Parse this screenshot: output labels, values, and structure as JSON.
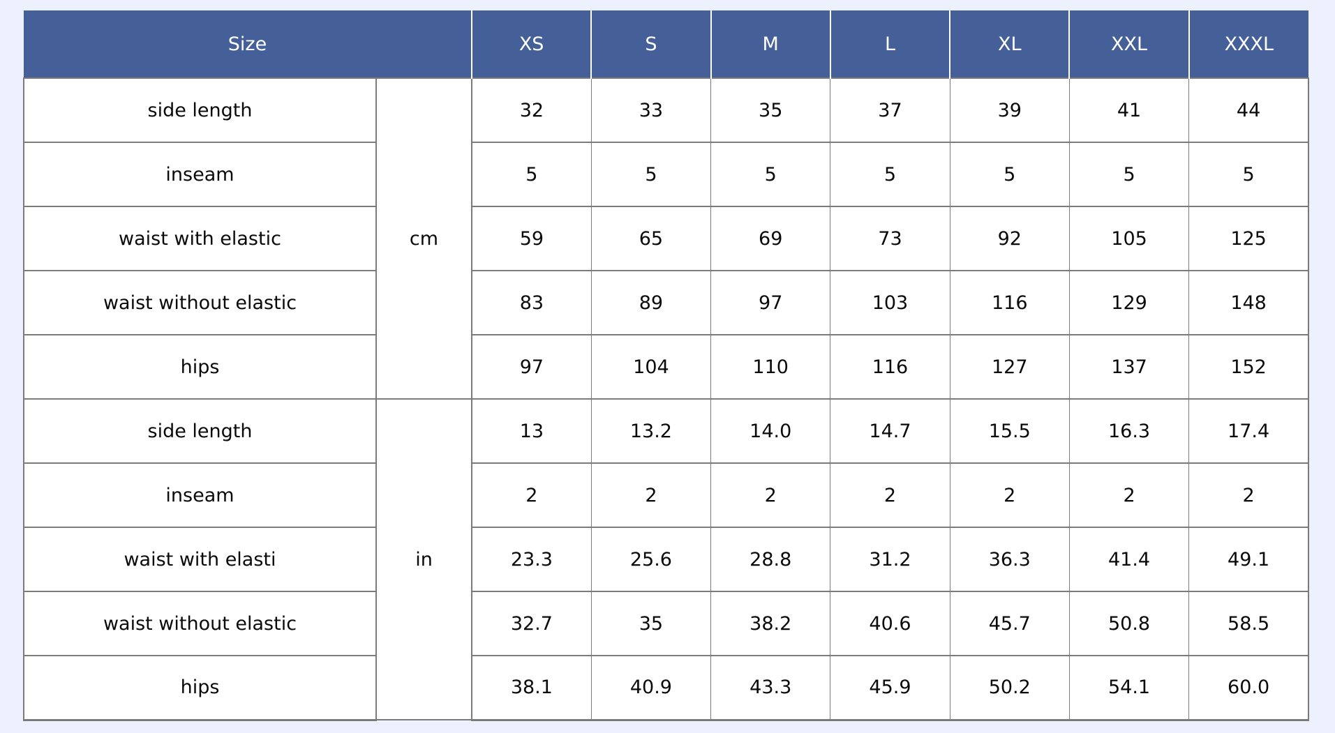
{
  "page": {
    "background_color": "#edf1fd"
  },
  "table": {
    "header": {
      "size_label": "Size",
      "columns": [
        "XS",
        "S",
        "M",
        "L",
        "XL",
        "XXL",
        "XXXL"
      ],
      "bg_color": "#455f99",
      "text_color": "#ffffff",
      "grid_color": "#7b7b7b"
    },
    "sections": [
      {
        "unit": "cm",
        "rows": [
          {
            "label": "side length",
            "values": [
              "32",
              "33",
              "35",
              "37",
              "39",
              "41",
              "44"
            ]
          },
          {
            "label": "inseam",
            "values": [
              "5",
              "5",
              "5",
              "5",
              "5",
              "5",
              "5"
            ]
          },
          {
            "label": "waist with elastic",
            "values": [
              "59",
              "65",
              "69",
              "73",
              "92",
              "105",
              "125"
            ]
          },
          {
            "label": "waist without elastic",
            "values": [
              "83",
              "89",
              "97",
              "103",
              "116",
              "129",
              "148"
            ]
          },
          {
            "label": "hips",
            "values": [
              "97",
              "104",
              "110",
              "116",
              "127",
              "137",
              "152"
            ]
          }
        ]
      },
      {
        "unit": "in",
        "rows": [
          {
            "label": "side length",
            "values": [
              "13",
              "13.2",
              "14.0",
              "14.7",
              "15.5",
              "16.3",
              "17.4"
            ]
          },
          {
            "label": "inseam",
            "values": [
              "2",
              "2",
              "2",
              "2",
              "2",
              "2",
              "2"
            ]
          },
          {
            "label": "waist with elasti",
            "values": [
              "23.3",
              "25.6",
              "28.8",
              "31.2",
              "36.3",
              "41.4",
              "49.1"
            ]
          },
          {
            "label": "waist without elastic",
            "values": [
              "32.7",
              "35",
              "38.2",
              "40.6",
              "45.7",
              "50.8",
              "58.5"
            ]
          },
          {
            "label": "hips",
            "values": [
              "38.1",
              "40.9",
              "43.3",
              "45.9",
              "50.2",
              "54.1",
              "60.0"
            ]
          }
        ]
      }
    ]
  },
  "chart_data": {
    "type": "table",
    "columns": [
      "Size",
      "unit",
      "XS",
      "S",
      "M",
      "L",
      "XL",
      "XXL",
      "XXXL"
    ],
    "rows": [
      {
        "measurement": "side length",
        "unit": "cm",
        "values": [
          32,
          33,
          35,
          37,
          39,
          41,
          44
        ]
      },
      {
        "measurement": "inseam",
        "unit": "cm",
        "values": [
          5,
          5,
          5,
          5,
          5,
          5,
          5
        ]
      },
      {
        "measurement": "waist with elastic",
        "unit": "cm",
        "values": [
          59,
          65,
          69,
          73,
          92,
          105,
          125
        ]
      },
      {
        "measurement": "waist without elastic",
        "unit": "cm",
        "values": [
          83,
          89,
          97,
          103,
          116,
          129,
          148
        ]
      },
      {
        "measurement": "hips",
        "unit": "cm",
        "values": [
          97,
          104,
          110,
          116,
          127,
          137,
          152
        ]
      },
      {
        "measurement": "side length",
        "unit": "in",
        "values": [
          13,
          13.2,
          14.0,
          14.7,
          15.5,
          16.3,
          17.4
        ]
      },
      {
        "measurement": "inseam",
        "unit": "in",
        "values": [
          2,
          2,
          2,
          2,
          2,
          2,
          2
        ]
      },
      {
        "measurement": "waist with elasti",
        "unit": "in",
        "values": [
          23.3,
          25.6,
          28.8,
          31.2,
          36.3,
          41.4,
          49.1
        ]
      },
      {
        "measurement": "waist without elastic",
        "unit": "in",
        "values": [
          32.7,
          35,
          38.2,
          40.6,
          45.7,
          50.8,
          58.5
        ]
      },
      {
        "measurement": "hips",
        "unit": "in",
        "values": [
          38.1,
          40.9,
          43.3,
          45.9,
          50.2,
          54.1,
          60.0
        ]
      }
    ],
    "layout": {
      "header_bg": "#455f99",
      "grid": true,
      "merged_unit_cells": true
    }
  }
}
